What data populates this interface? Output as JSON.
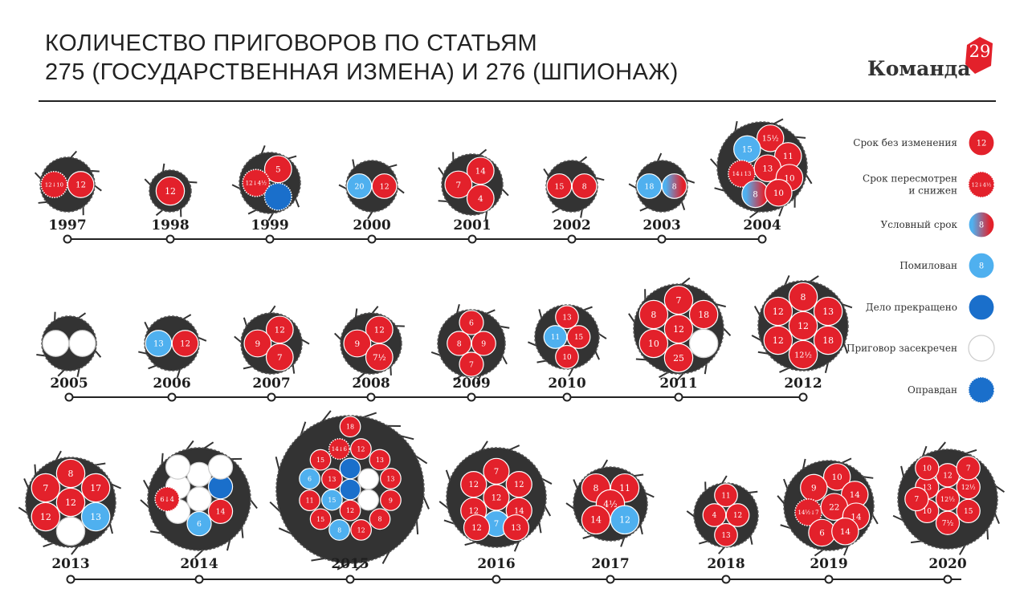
{
  "header": {
    "title_line1": "КОЛИЧЕСТВО ПРИГОВОРОВ ПО СТАТЬЯМ",
    "title_line2": "275 (ГОСУДАРСТВЕННАЯ ИЗМЕНА) И 276 (ШПИОНАЖ)",
    "logo_text": "Команда",
    "logo_number": "29"
  },
  "colors": {
    "unchanged": "#e3212b",
    "revised": "#e3212b",
    "probation_from": "#4fb0ef",
    "probation_to": "#e3212b",
    "pardoned": "#4fb0ef",
    "terminated": "#1a6fcb",
    "classified": "#ffffff",
    "acquitted": "#1a6fcb",
    "cluster": "#333333",
    "logo": "#e3212b"
  },
  "legend": [
    {
      "type": "unchanged",
      "label": [
        "Срок без изменения"
      ],
      "value": "12"
    },
    {
      "type": "revised",
      "label": [
        "Срок пересмотрен",
        "и снижен"
      ],
      "value": "12↓4½"
    },
    {
      "type": "probation",
      "label": [
        "Условный срок"
      ],
      "value": "8"
    },
    {
      "type": "pardoned",
      "label": [
        "Помилован"
      ],
      "value": "8"
    },
    {
      "type": "terminated",
      "label": [
        "Дело прекращено"
      ],
      "value": ""
    },
    {
      "type": "classified",
      "label": [
        "Приговор засекречен"
      ],
      "value": ""
    },
    {
      "type": "acquitted",
      "label": [
        "Оправдан"
      ],
      "value": ""
    }
  ],
  "chart_data": {
    "type": "bubble-cluster",
    "unit": "years of sentence",
    "years": [
      {
        "year": "1997",
        "sentences": [
          {
            "t": "revised",
            "v": "12↓10"
          },
          {
            "t": "unchanged",
            "v": "12"
          }
        ]
      },
      {
        "year": "1998",
        "sentences": [
          {
            "t": "unchanged",
            "v": "12"
          }
        ]
      },
      {
        "year": "1999",
        "sentences": [
          {
            "t": "unchanged",
            "v": "5"
          },
          {
            "t": "revised",
            "v": "12↓4½"
          },
          {
            "t": "acquitted",
            "v": ""
          }
        ]
      },
      {
        "year": "2000",
        "sentences": [
          {
            "t": "pardoned",
            "v": "20"
          },
          {
            "t": "unchanged",
            "v": "12"
          }
        ]
      },
      {
        "year": "2001",
        "sentences": [
          {
            "t": "unchanged",
            "v": "14"
          },
          {
            "t": "unchanged",
            "v": "7"
          },
          {
            "t": "unchanged",
            "v": "4"
          }
        ]
      },
      {
        "year": "2002",
        "sentences": [
          {
            "t": "unchanged",
            "v": "15"
          },
          {
            "t": "unchanged",
            "v": "8"
          }
        ]
      },
      {
        "year": "2003",
        "sentences": [
          {
            "t": "pardoned",
            "v": "18"
          },
          {
            "t": "probation",
            "v": "8"
          }
        ]
      },
      {
        "year": "2004",
        "sentences": [
          {
            "t": "unchanged",
            "v": "15½"
          },
          {
            "t": "pardoned",
            "v": "15"
          },
          {
            "t": "unchanged",
            "v": "11"
          },
          {
            "t": "revised",
            "v": "14↓13"
          },
          {
            "t": "unchanged",
            "v": "13"
          },
          {
            "t": "unchanged",
            "v": "10"
          },
          {
            "t": "probation",
            "v": "8"
          },
          {
            "t": "unchanged",
            "v": "10"
          }
        ]
      },
      {
        "year": "2005",
        "sentences": [
          {
            "t": "classified",
            "v": ""
          },
          {
            "t": "classified",
            "v": ""
          }
        ]
      },
      {
        "year": "2006",
        "sentences": [
          {
            "t": "pardoned",
            "v": "13"
          },
          {
            "t": "unchanged",
            "v": "12"
          }
        ]
      },
      {
        "year": "2007",
        "sentences": [
          {
            "t": "unchanged",
            "v": "12"
          },
          {
            "t": "unchanged",
            "v": "9"
          },
          {
            "t": "unchanged",
            "v": "7"
          }
        ]
      },
      {
        "year": "2008",
        "sentences": [
          {
            "t": "unchanged",
            "v": "12"
          },
          {
            "t": "unchanged",
            "v": "9"
          },
          {
            "t": "unchanged",
            "v": "7½"
          }
        ]
      },
      {
        "year": "2009",
        "sentences": [
          {
            "t": "unchanged",
            "v": "6"
          },
          {
            "t": "unchanged",
            "v": "8"
          },
          {
            "t": "unchanged",
            "v": "9"
          },
          {
            "t": "unchanged",
            "v": "7"
          }
        ]
      },
      {
        "year": "2010",
        "sentences": [
          {
            "t": "unchanged",
            "v": "13"
          },
          {
            "t": "pardoned",
            "v": "11"
          },
          {
            "t": "unchanged",
            "v": "15"
          },
          {
            "t": "unchanged",
            "v": "10"
          }
        ]
      },
      {
        "year": "2011",
        "sentences": [
          {
            "t": "unchanged",
            "v": "7"
          },
          {
            "t": "unchanged",
            "v": "8"
          },
          {
            "t": "unchanged",
            "v": "18"
          },
          {
            "t": "unchanged",
            "v": "12"
          },
          {
            "t": "unchanged",
            "v": "10"
          },
          {
            "t": "classified",
            "v": ""
          },
          {
            "t": "unchanged",
            "v": "25"
          }
        ]
      },
      {
        "year": "2012",
        "sentences": [
          {
            "t": "unchanged",
            "v": "8"
          },
          {
            "t": "unchanged",
            "v": "12"
          },
          {
            "t": "unchanged",
            "v": "13"
          },
          {
            "t": "unchanged",
            "v": "12"
          },
          {
            "t": "unchanged",
            "v": "12"
          },
          {
            "t": "unchanged",
            "v": "18"
          },
          {
            "t": "unchanged",
            "v": "12½"
          }
        ]
      },
      {
        "year": "2013",
        "sentences": [
          {
            "t": "unchanged",
            "v": "8"
          },
          {
            "t": "unchanged",
            "v": "7"
          },
          {
            "t": "unchanged",
            "v": "17"
          },
          {
            "t": "unchanged",
            "v": "12"
          },
          {
            "t": "unchanged",
            "v": "12"
          },
          {
            "t": "pardoned",
            "v": "13"
          },
          {
            "t": "classified",
            "v": ""
          }
        ]
      },
      {
        "year": "2014",
        "sentences": [
          {
            "t": "classified",
            "v": ""
          },
          {
            "t": "terminated",
            "v": ""
          },
          {
            "t": "classified",
            "v": ""
          },
          {
            "t": "classified",
            "v": ""
          },
          {
            "t": "unchanged",
            "v": "14"
          },
          {
            "t": "classified",
            "v": ""
          },
          {
            "t": "pardoned",
            "v": "6"
          },
          {
            "t": "classified",
            "v": ""
          },
          {
            "t": "classified",
            "v": ""
          },
          {
            "t": "revised",
            "v": "6↓4"
          }
        ]
      },
      {
        "year": "2015",
        "sentences": [
          {
            "t": "terminated",
            "v": ""
          },
          {
            "t": "terminated",
            "v": ""
          },
          {
            "t": "classified",
            "v": ""
          },
          {
            "t": "classified",
            "v": ""
          },
          {
            "t": "unchanged",
            "v": "12"
          },
          {
            "t": "pardoned",
            "v": "15"
          },
          {
            "t": "unchanged",
            "v": "13"
          },
          {
            "t": "unchanged",
            "v": "12"
          },
          {
            "t": "unchanged",
            "v": "13"
          },
          {
            "t": "unchanged",
            "v": "13"
          },
          {
            "t": "unchanged",
            "v": "9"
          },
          {
            "t": "unchanged",
            "v": "8"
          },
          {
            "t": "unchanged",
            "v": "12"
          },
          {
            "t": "pardoned",
            "v": "8"
          },
          {
            "t": "unchanged",
            "v": "15"
          },
          {
            "t": "unchanged",
            "v": "11"
          },
          {
            "t": "pardoned",
            "v": "6"
          },
          {
            "t": "unchanged",
            "v": "15"
          },
          {
            "t": "revised",
            "v": "14↓6"
          },
          {
            "t": "unchanged",
            "v": "18"
          }
        ]
      },
      {
        "year": "2016",
        "sentences": [
          {
            "t": "unchanged",
            "v": "7"
          },
          {
            "t": "unchanged",
            "v": "12"
          },
          {
            "t": "unchanged",
            "v": "12"
          },
          {
            "t": "unchanged",
            "v": "12"
          },
          {
            "t": "unchanged",
            "v": "14"
          },
          {
            "t": "unchanged",
            "v": "12"
          },
          {
            "t": "pardoned",
            "v": "7"
          },
          {
            "t": "unchanged",
            "v": "12"
          },
          {
            "t": "unchanged",
            "v": "13"
          }
        ]
      },
      {
        "year": "2017",
        "sentences": [
          {
            "t": "unchanged",
            "v": "8"
          },
          {
            "t": "unchanged",
            "v": "11"
          },
          {
            "t": "unchanged",
            "v": "4½"
          },
          {
            "t": "unchanged",
            "v": "14"
          },
          {
            "t": "pardoned",
            "v": "12"
          }
        ]
      },
      {
        "year": "2018",
        "sentences": [
          {
            "t": "unchanged",
            "v": "11"
          },
          {
            "t": "unchanged",
            "v": "4"
          },
          {
            "t": "unchanged",
            "v": "12"
          },
          {
            "t": "unchanged",
            "v": "13"
          }
        ]
      },
      {
        "year": "2019",
        "sentences": [
          {
            "t": "unchanged",
            "v": "10"
          },
          {
            "t": "unchanged",
            "v": "9"
          },
          {
            "t": "unchanged",
            "v": "14"
          },
          {
            "t": "revised",
            "v": "14½↓7"
          },
          {
            "t": "unchanged",
            "v": "22"
          },
          {
            "t": "unchanged",
            "v": "14"
          },
          {
            "t": "unchanged",
            "v": "6"
          },
          {
            "t": "unchanged",
            "v": "14"
          }
        ]
      },
      {
        "year": "2020",
        "sentences": [
          {
            "t": "unchanged",
            "v": "12"
          },
          {
            "t": "unchanged",
            "v": "12½"
          },
          {
            "t": "unchanged",
            "v": "13"
          },
          {
            "t": "unchanged",
            "v": "12½"
          },
          {
            "t": "unchanged",
            "v": "15"
          },
          {
            "t": "unchanged",
            "v": "10"
          },
          {
            "t": "unchanged",
            "v": "7½"
          },
          {
            "t": "unchanged",
            "v": "10"
          },
          {
            "t": "unchanged",
            "v": "7"
          },
          {
            "t": "unchanged",
            "v": "7"
          }
        ]
      }
    ]
  }
}
